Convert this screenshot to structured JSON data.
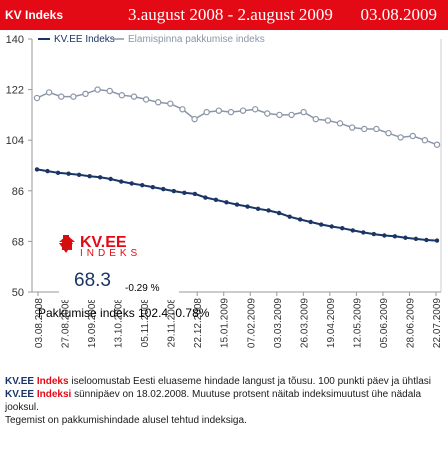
{
  "header": {
    "title": "KV Indeks",
    "range": "3.august 2008 - 2.august 2009",
    "date": "03.08.2009",
    "background_color": "#e30a16"
  },
  "chart_data": {
    "type": "line",
    "title": "",
    "xlabel": "",
    "ylabel": "",
    "ylim": [
      50,
      140
    ],
    "yticks": [
      50,
      68,
      86,
      104,
      122,
      140
    ],
    "grid": false,
    "legend_position": "top-left",
    "x_tick_labels": [
      "03.08.2008",
      "27.08.2008",
      "19.09.2008",
      "13.10.2008",
      "05.11.2008",
      "29.11.2008",
      "22.12.2008",
      "15.01.2009",
      "07.02.2009",
      "03.03.2009",
      "26.03.2009",
      "19.04.2009",
      "12.05.2009",
      "05.06.2009",
      "28.06.2009",
      "22.07.2009"
    ],
    "series": [
      {
        "name": "KV.EE Indeks",
        "color": "#1a3566",
        "values": [
          93.6,
          93.0,
          92.4,
          92.1,
          91.7,
          91.2,
          90.8,
          90.2,
          89.3,
          88.6,
          88.0,
          87.3,
          86.6,
          85.9,
          85.3,
          84.9,
          83.6,
          82.8,
          81.9,
          81.1,
          80.4,
          79.6,
          79.0,
          78.1,
          76.8,
          75.8,
          74.9,
          74.0,
          73.3,
          72.7,
          71.9,
          71.2,
          70.6,
          70.1,
          69.8,
          69.3,
          68.9,
          68.5,
          68.3
        ]
      },
      {
        "name": "Elamispinna pakkumise indeks",
        "color": "#8a96a8",
        "values": [
          119.0,
          121.0,
          119.5,
          119.5,
          120.5,
          122.0,
          121.5,
          120.0,
          119.5,
          118.5,
          117.5,
          117.0,
          115.0,
          111.5,
          114.0,
          114.5,
          114.0,
          114.5,
          115.0,
          113.5,
          113.0,
          113.0,
          114.0,
          111.5,
          111.0,
          110.0,
          108.5,
          108.0,
          108.0,
          106.5,
          105.0,
          105.5,
          104.0,
          102.4
        ]
      }
    ]
  },
  "kv_logo": {
    "brand": "KV.EE",
    "sub": "INDEKS",
    "value": "68.3",
    "change": "-0.29 %"
  },
  "pakkumise_note": "Pakkumise indeks 102.4  -0.78%",
  "footer": {
    "brand1": "KV.EE",
    "brand1_red": "Indeks",
    "line1": " iseloomustab Eesti eluaseme hindade langust ja tõusu. 100 punkti päev ja ühtlasi ",
    "brand2": "KV.EE",
    "brand2_red": "Indeksi",
    "line2": " sünnipäev on 18.02.2008. Muutuse protsent näitab indeksimuutust ühe nädala jooksul.",
    "line3": "Tegemist on pakkumishindade alusel tehtud indeksiga."
  }
}
